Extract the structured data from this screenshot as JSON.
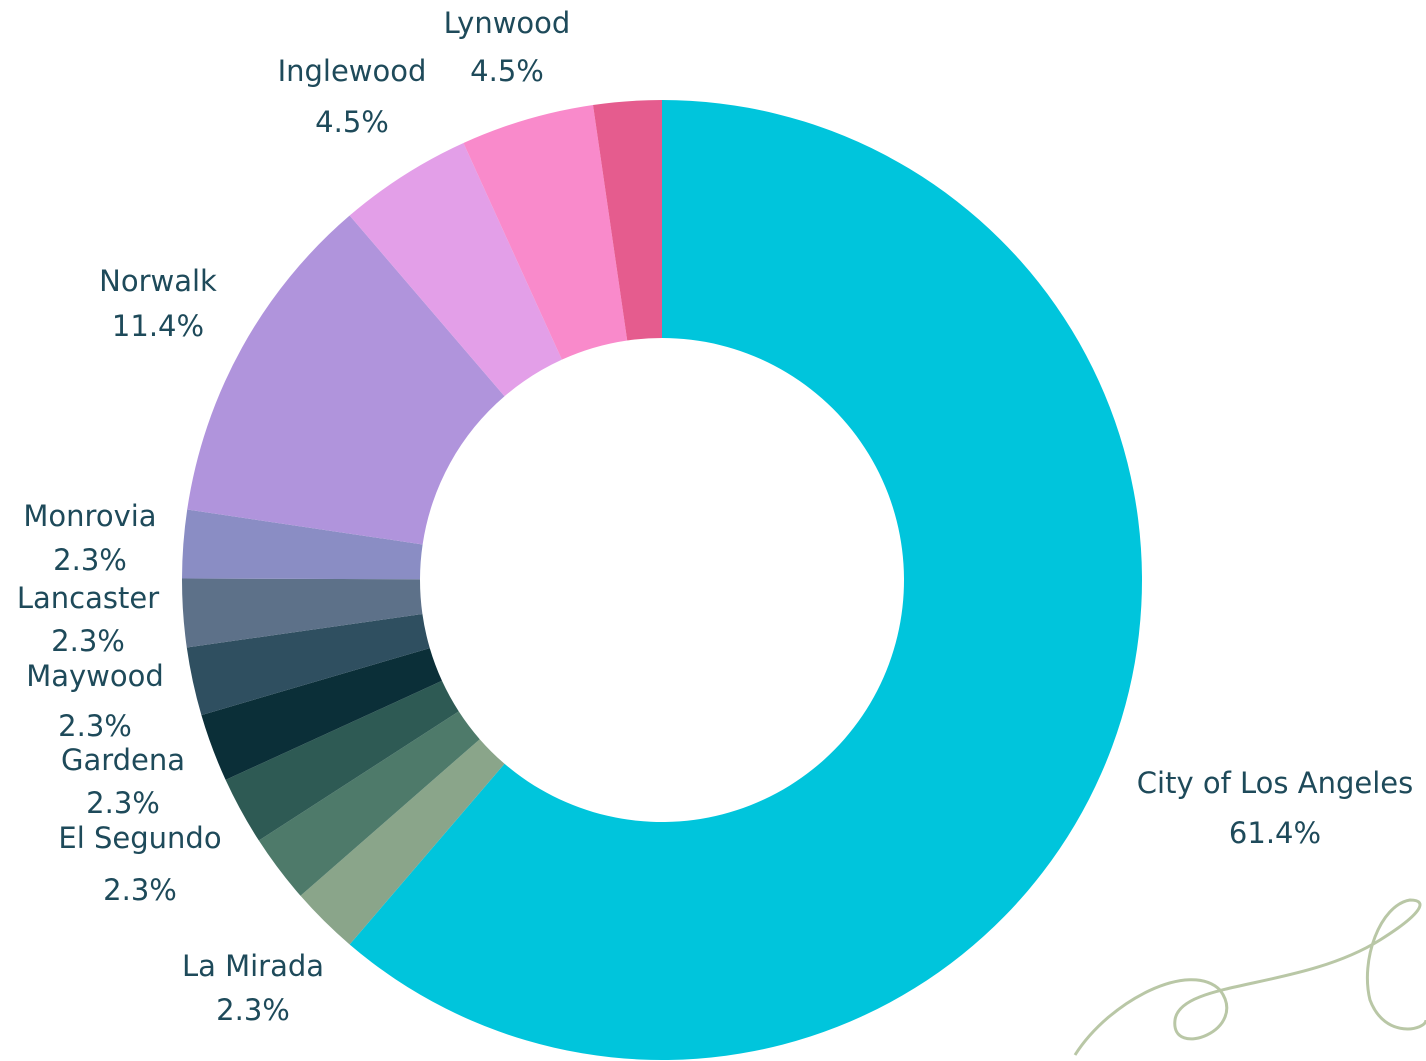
{
  "chart_data": {
    "type": "donut",
    "categories": [
      "City of Los Angeles",
      "La Mirada",
      "El Segundo",
      "Gardena",
      "Maywood",
      null,
      "Lancaster",
      "Monrovia",
      "Norwalk",
      "Inglewood",
      "Lynwood",
      null
    ],
    "values": [
      61.4,
      2.3,
      2.3,
      2.3,
      2.3,
      2.3,
      2.3,
      2.3,
      11.4,
      4.5,
      4.5,
      2.3
    ],
    "value_labels": [
      "61.4%",
      "2.3%",
      "2.3%",
      "2.3%",
      "2.3%",
      null,
      "2.3%",
      "2.3%",
      "11.4%",
      "4.5%",
      "4.5%",
      null
    ],
    "colors": [
      "#00c5dc",
      "#8aa58a",
      "#4e7a6a",
      "#2e5a54",
      "#0b2f38",
      "#2f4f60",
      "#5d7189",
      "#8a8dc4",
      "#b094dc",
      "#e39fe8",
      "#f98acb",
      "#e55c8e"
    ]
  }
}
